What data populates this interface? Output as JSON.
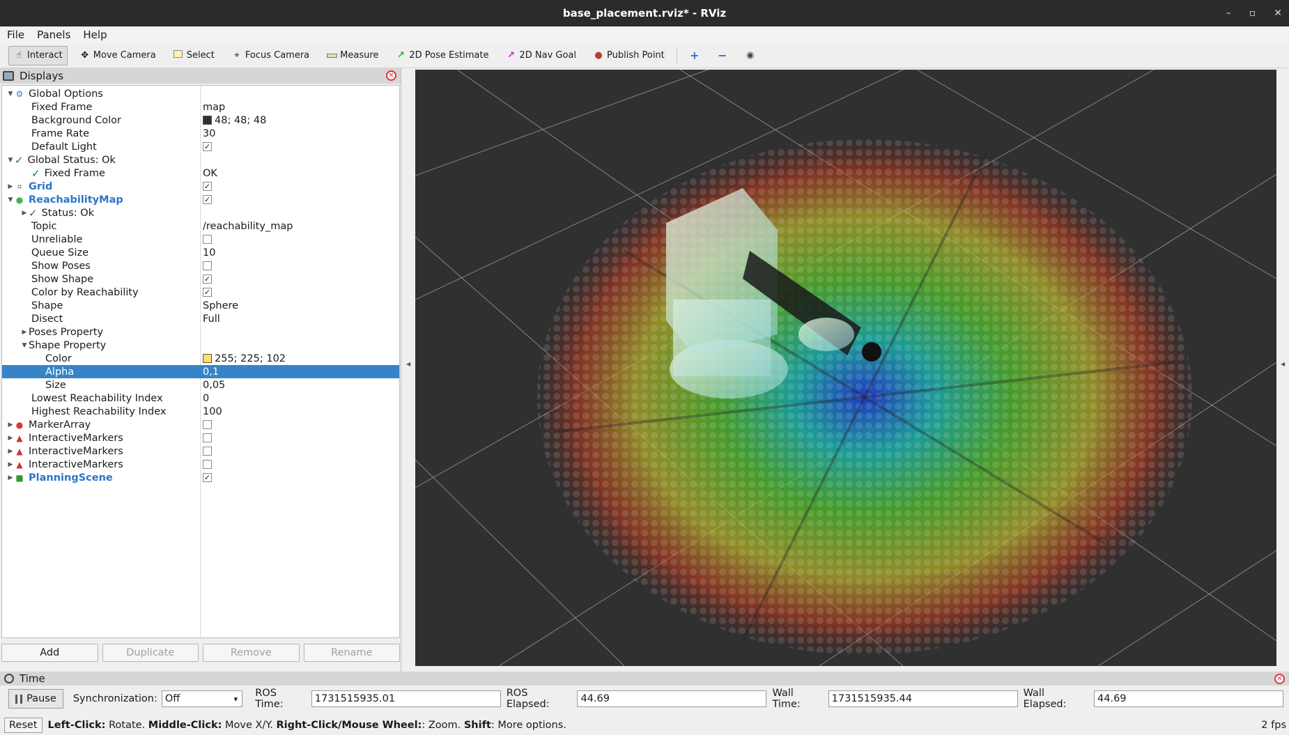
{
  "window": {
    "title": "base_placement.rviz* - RViz",
    "min": "–",
    "max": "▫",
    "close": "✕"
  },
  "menu": [
    "File",
    "Panels",
    "Help"
  ],
  "toolbar": {
    "interact": "Interact",
    "move_camera": "Move Camera",
    "select": "Select",
    "focus_camera": "Focus Camera",
    "measure": "Measure",
    "pose_estimate": "2D Pose Estimate",
    "nav_goal": "2D Nav Goal",
    "publish_point": "Publish Point"
  },
  "displays": {
    "title": "Displays",
    "rows": {
      "global_options": "Global Options",
      "fixed_frame": {
        "label": "Fixed Frame",
        "value": "map"
      },
      "background_color": {
        "label": "Background Color",
        "value": "48; 48; 48"
      },
      "frame_rate": {
        "label": "Frame Rate",
        "value": "30"
      },
      "default_light": {
        "label": "Default Light"
      },
      "global_status": "Global Status: Ok",
      "gs_fixed_frame": {
        "label": "Fixed Frame",
        "value": "OK"
      },
      "grid": "Grid",
      "reachability_map": "ReachabilityMap",
      "status_ok": "Status: Ok",
      "topic": {
        "label": "Topic",
        "value": "/reachability_map"
      },
      "unreliable": "Unreliable",
      "queue_size": {
        "label": "Queue Size",
        "value": "10"
      },
      "show_poses": "Show Poses",
      "show_shape": "Show Shape",
      "color_by_reach": "Color by Reachability",
      "shape": {
        "label": "Shape",
        "value": "Sphere"
      },
      "disect": {
        "label": "Disect",
        "value": "Full"
      },
      "poses_property": "Poses Property",
      "shape_property": "Shape Property",
      "color": {
        "label": "Color",
        "value": "255; 225; 102"
      },
      "alpha": {
        "label": "Alpha",
        "value": "0,1"
      },
      "size": {
        "label": "Size",
        "value": "0,05"
      },
      "lowest_index": {
        "label": "Lowest Reachability Index",
        "value": "0"
      },
      "highest_index": {
        "label": "Highest Reachability Index",
        "value": "100"
      },
      "marker_array": "MarkerArray",
      "interactive_markers": "InteractiveMarkers",
      "planning_scene": "PlanningScene"
    },
    "buttons": {
      "add": "Add",
      "duplicate": "Duplicate",
      "remove": "Remove",
      "rename": "Rename"
    }
  },
  "time": {
    "title": "Time",
    "pause": "Pause",
    "sync_label": "Synchronization:",
    "sync_value": "Off",
    "ros_time_label": "ROS Time:",
    "ros_time": "1731515935.01",
    "ros_elapsed_label": "ROS Elapsed:",
    "ros_elapsed": "44.69",
    "wall_time_label": "Wall Time:",
    "wall_time": "1731515935.44",
    "wall_elapsed_label": "Wall Elapsed:",
    "wall_elapsed": "44.69"
  },
  "status": {
    "reset": "Reset",
    "left_click": "Left-Click:",
    "left_click_desc": "Rotate.",
    "middle_click": "Middle-Click:",
    "middle_click_desc": "Move X/Y.",
    "right_click": "Right-Click/Mouse Wheel:",
    "right_click_desc": ": Zoom.",
    "shift": "Shift",
    "shift_desc": ": More options.",
    "fps": "2 fps"
  },
  "colors": {
    "view_bg": "#303030",
    "selection": "#3584c8",
    "bg_swatch": "#303030",
    "color_swatch": "#ffe166"
  }
}
